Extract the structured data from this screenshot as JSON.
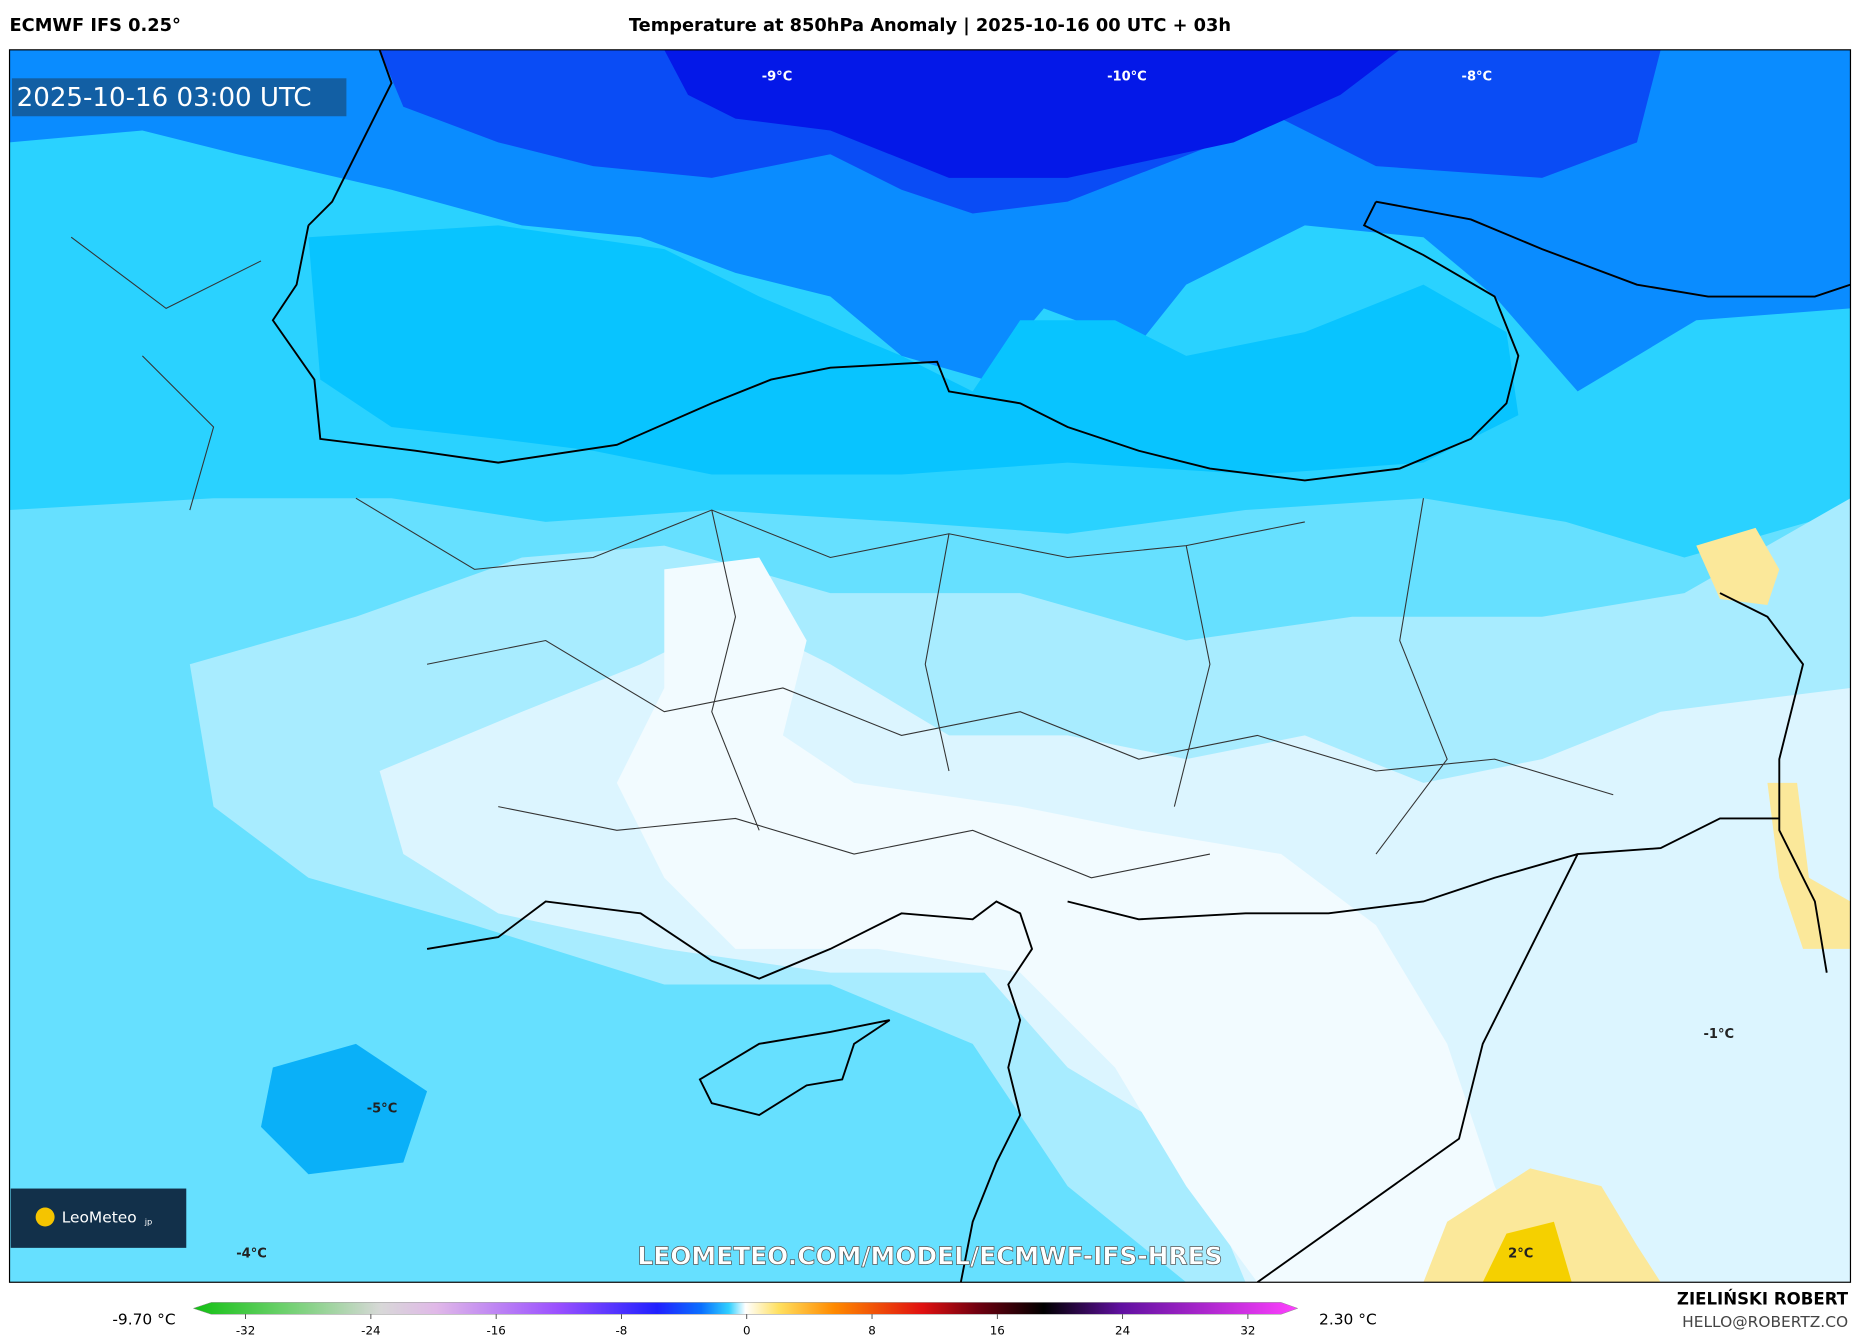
{
  "header": {
    "source": "ECMWF IFS 0.25°",
    "title": "Temperature at 850hPa Anomaly | 2025-10-16 00 UTC + 03h"
  },
  "map": {
    "valid_time": "2025-10-16 03:00 UTC",
    "labels": [
      "-9°C",
      "-10°C",
      "-8°C",
      "-5°C",
      "-4°C",
      "-1°C",
      "2°C"
    ],
    "watermark": "LEOMETEO.COM/MODEL/ECMWF-IFS-HRES",
    "logo": {
      "name": "LeoMeteo",
      "suffix": "jp"
    }
  },
  "colorbar": {
    "min_label": "-9.70 °C",
    "max_label": "2.30 °C",
    "ticks": [
      -32,
      -24,
      -16,
      -8,
      0,
      8,
      16,
      24,
      32
    ]
  },
  "footer": {
    "author": "ZIELIŃSKI ROBERT",
    "email": "HELLO@ROBERTZ.CO"
  }
}
